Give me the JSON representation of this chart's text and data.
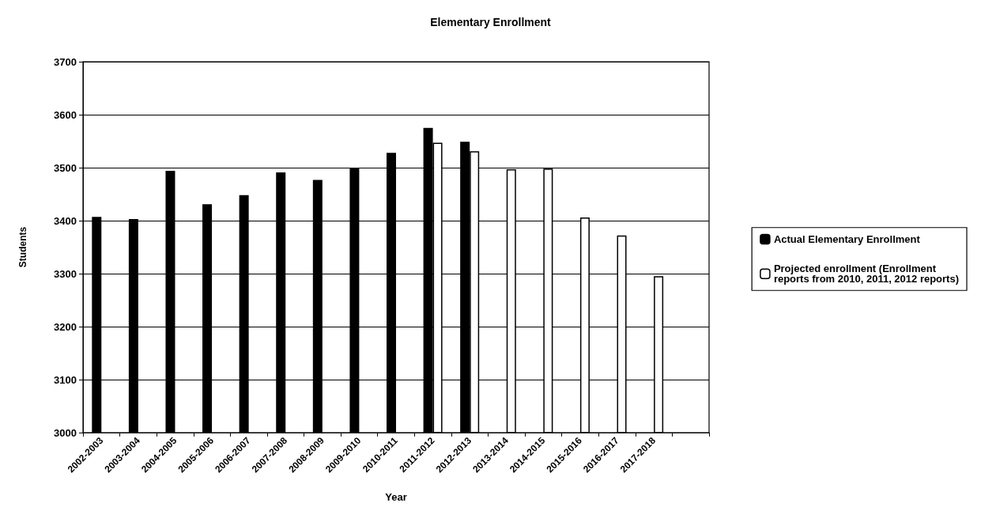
{
  "chart_data": {
    "type": "bar",
    "title": "Elementary Enrollment",
    "xlabel": "Year",
    "ylabel": "Students",
    "categories": [
      "2002-2003",
      "2003-2004",
      "2004-2005",
      "2005-2006",
      "2006-2007",
      "2007-2008",
      "2008-2009",
      "2009-2010",
      "2010-2011",
      "2011-2012",
      "2012-2013",
      "2013-2014",
      "2014-2015",
      "2015-2016",
      "2016-2017",
      "2017-2018",
      null
    ],
    "series": [
      {
        "name": "Actual Elementary Enrollment",
        "color": "#000000",
        "values": [
          3407,
          3403,
          3494,
          3431,
          3448,
          3491,
          3477,
          3500,
          3528,
          3575,
          3549,
          null,
          null,
          null,
          null,
          null,
          null
        ]
      },
      {
        "name": "Projected enrollment (Enrollment reports from 2010, 2011, 2012 reports)",
        "color": "#ffffff",
        "values": [
          null,
          null,
          null,
          null,
          null,
          null,
          null,
          null,
          null,
          3547,
          3531,
          3497,
          3498,
          3406,
          3372,
          3295,
          null
        ]
      }
    ],
    "ylim": [
      3000,
      3700
    ],
    "yticks": [
      3000,
      3100,
      3200,
      3300,
      3400,
      3500,
      3600,
      3700
    ],
    "grid": "y",
    "legend": "right"
  }
}
